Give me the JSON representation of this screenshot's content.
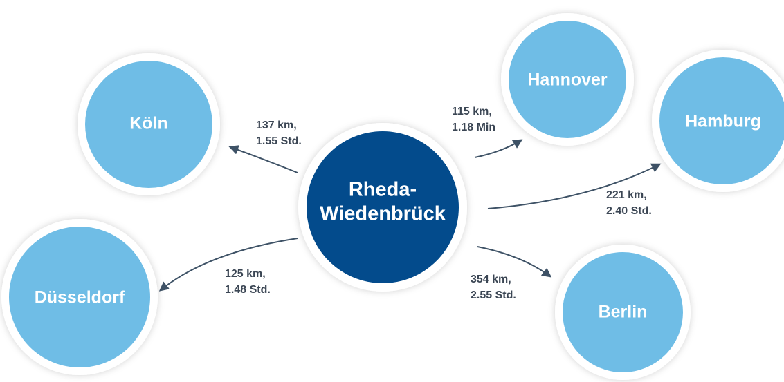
{
  "center": {
    "lines": [
      "Rheda-",
      "Wiedenbrück"
    ]
  },
  "nodes": [
    {
      "label": "Köln"
    },
    {
      "label": "Hannover"
    },
    {
      "label": "Hamburg"
    },
    {
      "label": "Düsseldorf"
    },
    {
      "label": "Berlin"
    }
  ],
  "edges": [
    {
      "lines": [
        "137 km,",
        "1.55 Std."
      ]
    },
    {
      "lines": [
        "115 km,",
        "1.18 Min"
      ]
    },
    {
      "lines": [
        "221 km,",
        "2.40 Std."
      ]
    },
    {
      "lines": [
        "125 km,",
        "1.48 Std."
      ]
    },
    {
      "lines": [
        "354 km,",
        "2.55 Std."
      ]
    }
  ]
}
